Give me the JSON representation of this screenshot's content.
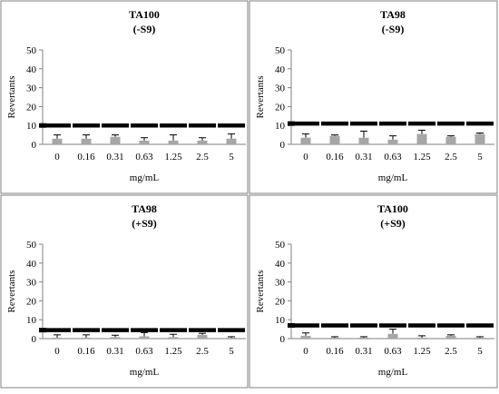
{
  "chart_data": [
    {
      "type": "bar",
      "title": "TA100",
      "subtitle": "(-S9)",
      "xlabel": "mg/mL",
      "ylabel": "Revertants",
      "categories": [
        "0",
        "0.16",
        "0.31",
        "0.63",
        "1.25",
        "2.5",
        "5"
      ],
      "yticks": [
        "0",
        "10",
        "20",
        "30",
        "40",
        "50"
      ],
      "ylim": [
        0,
        50
      ],
      "values": [
        3,
        3,
        4,
        2,
        2,
        2,
        3
      ],
      "error": [
        2,
        2,
        1,
        1.5,
        3,
        1.5,
        2.5
      ],
      "threshold": 10,
      "bar_color": "#a6a6a6",
      "threshold_color": "#000000",
      "grid": false
    },
    {
      "type": "bar",
      "title": "TA98",
      "subtitle": "(-S9)",
      "xlabel": "mg/mL",
      "ylabel": "Revertants",
      "categories": [
        "0",
        "0.16",
        "0.31",
        "0.63",
        "1.25",
        "2.5",
        "5"
      ],
      "yticks": [
        "0",
        "10",
        "20",
        "30",
        "40",
        "50"
      ],
      "ylim": [
        0,
        50
      ],
      "values": [
        3.5,
        4.5,
        3.5,
        2.5,
        5.5,
        4,
        5.5
      ],
      "error": [
        2,
        0.5,
        3.5,
        2,
        2,
        0.5,
        0.5
      ],
      "threshold": 11,
      "bar_color": "#a6a6a6",
      "threshold_color": "#000000",
      "grid": false
    },
    {
      "type": "bar",
      "title": "TA98",
      "subtitle": "(+S9)",
      "xlabel": "mg/mL",
      "ylabel": "Revertants",
      "categories": [
        "0",
        "0.16",
        "0.31",
        "0.63",
        "1.25",
        "2.5",
        "5"
      ],
      "yticks": [
        "0",
        "10",
        "20",
        "30",
        "40",
        "50"
      ],
      "ylim": [
        0,
        50
      ],
      "values": [
        0.5,
        0.5,
        0.8,
        1.2,
        0.8,
        2,
        0.5
      ],
      "error": [
        1.5,
        1.5,
        1,
        2,
        1.5,
        0.8,
        0.5
      ],
      "threshold": 4.5,
      "bar_color": "#a6a6a6",
      "threshold_color": "#000000",
      "grid": false
    },
    {
      "type": "bar",
      "title": "TA100",
      "subtitle": "(+S9)",
      "xlabel": "mg/mL",
      "ylabel": "Revertants",
      "categories": [
        "0",
        "0.16",
        "0.31",
        "0.63",
        "1.25",
        "2.5",
        "5"
      ],
      "yticks": [
        "0",
        "10",
        "20",
        "30",
        "40",
        "50"
      ],
      "ylim": [
        0,
        50
      ],
      "values": [
        1.5,
        0.5,
        0.5,
        2.5,
        0.5,
        1.5,
        0.5
      ],
      "error": [
        1.5,
        0.5,
        0.5,
        2.5,
        1,
        0.5,
        0.5
      ],
      "threshold": 7,
      "bar_color": "#a6a6a6",
      "threshold_color": "#000000",
      "grid": false
    }
  ]
}
